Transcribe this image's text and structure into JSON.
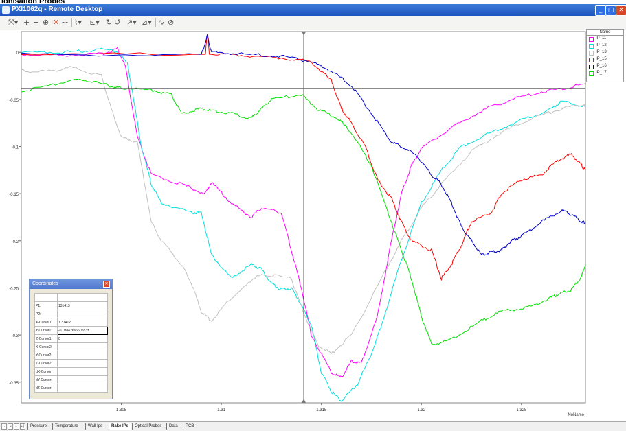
{
  "document": {
    "title": "Ionisation Probes"
  },
  "window": {
    "title": "PXI1062q - Remote Desktop",
    "controls": [
      {
        "name": "minimize",
        "glyph": "_"
      },
      {
        "name": "maximize",
        "glyph": "□"
      },
      {
        "name": "close",
        "glyph": "✕"
      }
    ]
  },
  "toolbar": {
    "icons": [
      "select-tool",
      "add-tool",
      "remove-tool",
      "zoom-tool",
      "delete-tool",
      "plot-tool",
      "chart-tool",
      "axis-tool",
      "zoom-x-tool",
      "zoom-y-tool",
      "cursor-tool",
      "measure-tool",
      "wave-tool",
      "link-tool"
    ]
  },
  "chart_data": {
    "type": "line",
    "xlim": [
      1.3,
      1.3282
    ],
    "ylim": [
      -0.372,
      0.022
    ],
    "xticks": [
      1.305,
      1.31,
      1.315,
      1.32,
      1.325
    ],
    "xtick_labels": [
      "1.305",
      "1.31",
      "1.315",
      "1.32",
      "1.325"
    ],
    "yticks": [
      0,
      -0.05,
      -0.1,
      -0.15,
      -0.2,
      -0.25,
      -0.3,
      -0.35
    ],
    "ytick_labels": [
      "0",
      "-0.05",
      "-0.1",
      "-0.15",
      "-0.2",
      "-0.25",
      "-0.3",
      "-0.35"
    ],
    "xlabel": "NoName",
    "grid": false,
    "legend_position": "top-right",
    "cursor": {
      "x": 1.31412,
      "y": -0.0384
    },
    "series": [
      {
        "name": "IP_11",
        "color": "#ff00ff",
        "points": [
          [
            1.3,
            -0.002
          ],
          [
            1.302,
            -0.003
          ],
          [
            1.304,
            -0.002
          ],
          [
            1.3048,
            0.004
          ],
          [
            1.3052,
            -0.015
          ],
          [
            1.3058,
            -0.09
          ],
          [
            1.3065,
            -0.13
          ],
          [
            1.308,
            -0.14
          ],
          [
            1.3092,
            -0.15
          ],
          [
            1.3095,
            -0.138
          ],
          [
            1.3105,
            -0.16
          ],
          [
            1.3115,
            -0.175
          ],
          [
            1.312,
            -0.165
          ],
          [
            1.313,
            -0.17
          ],
          [
            1.3135,
            -0.21
          ],
          [
            1.314,
            -0.25
          ],
          [
            1.3145,
            -0.3
          ],
          [
            1.3155,
            -0.34
          ],
          [
            1.316,
            -0.345
          ],
          [
            1.3165,
            -0.328
          ],
          [
            1.317,
            -0.33
          ],
          [
            1.3178,
            -0.28
          ],
          [
            1.3185,
            -0.2
          ],
          [
            1.319,
            -0.15
          ],
          [
            1.3195,
            -0.12
          ],
          [
            1.32,
            -0.102
          ],
          [
            1.3215,
            -0.08
          ],
          [
            1.323,
            -0.062
          ],
          [
            1.3245,
            -0.05
          ],
          [
            1.326,
            -0.042
          ],
          [
            1.3275,
            -0.037
          ],
          [
            1.3282,
            -0.033
          ]
        ]
      },
      {
        "name": "IP_12",
        "color": "#00dede",
        "points": [
          [
            1.3,
            0.0
          ],
          [
            1.302,
            0.0
          ],
          [
            1.3035,
            0.002
          ],
          [
            1.3045,
            0.004
          ],
          [
            1.3053,
            -0.01
          ],
          [
            1.306,
            -0.1
          ],
          [
            1.3065,
            -0.14
          ],
          [
            1.307,
            -0.16
          ],
          [
            1.3085,
            -0.17
          ],
          [
            1.309,
            -0.17
          ],
          [
            1.3095,
            -0.215
          ],
          [
            1.3105,
            -0.24
          ],
          [
            1.3115,
            -0.225
          ],
          [
            1.312,
            -0.23
          ],
          [
            1.3125,
            -0.245
          ],
          [
            1.313,
            -0.252
          ],
          [
            1.3135,
            -0.25
          ],
          [
            1.314,
            -0.268
          ],
          [
            1.3145,
            -0.29
          ],
          [
            1.315,
            -0.34
          ],
          [
            1.3155,
            -0.36
          ],
          [
            1.316,
            -0.37
          ],
          [
            1.3168,
            -0.352
          ],
          [
            1.3175,
            -0.32
          ],
          [
            1.318,
            -0.29
          ],
          [
            1.319,
            -0.22
          ],
          [
            1.32,
            -0.16
          ],
          [
            1.321,
            -0.125
          ],
          [
            1.322,
            -0.1
          ],
          [
            1.3235,
            -0.085
          ],
          [
            1.325,
            -0.072
          ],
          [
            1.3265,
            -0.06
          ],
          [
            1.327,
            -0.052
          ],
          [
            1.3282,
            -0.058
          ]
        ]
      },
      {
        "name": "IP_13",
        "color": "#c0c0c0",
        "points": [
          [
            1.3,
            -0.02
          ],
          [
            1.3015,
            -0.02
          ],
          [
            1.3025,
            -0.016
          ],
          [
            1.304,
            -0.025
          ],
          [
            1.3045,
            -0.06
          ],
          [
            1.305,
            -0.09
          ],
          [
            1.3058,
            -0.095
          ],
          [
            1.3065,
            -0.18
          ],
          [
            1.307,
            -0.2
          ],
          [
            1.308,
            -0.225
          ],
          [
            1.3085,
            -0.245
          ],
          [
            1.309,
            -0.275
          ],
          [
            1.3095,
            -0.285
          ],
          [
            1.3105,
            -0.26
          ],
          [
            1.312,
            -0.235
          ],
          [
            1.3135,
            -0.24
          ],
          [
            1.314,
            -0.27
          ],
          [
            1.3148,
            -0.31
          ],
          [
            1.3155,
            -0.32
          ],
          [
            1.3165,
            -0.3
          ],
          [
            1.318,
            -0.24
          ],
          [
            1.319,
            -0.2
          ],
          [
            1.32,
            -0.165
          ],
          [
            1.321,
            -0.14
          ],
          [
            1.3225,
            -0.105
          ],
          [
            1.324,
            -0.085
          ],
          [
            1.3255,
            -0.07
          ],
          [
            1.327,
            -0.06
          ],
          [
            1.3282,
            -0.055
          ]
        ]
      },
      {
        "name": "IP_15",
        "color": "#ff0000",
        "points": [
          [
            1.3,
            -0.002
          ],
          [
            1.3092,
            -0.002
          ],
          [
            1.3093,
            0.02
          ],
          [
            1.3094,
            -0.002
          ],
          [
            1.311,
            -0.003
          ],
          [
            1.313,
            -0.006
          ],
          [
            1.3145,
            -0.01
          ],
          [
            1.3155,
            -0.03
          ],
          [
            1.316,
            -0.06
          ],
          [
            1.3165,
            -0.075
          ],
          [
            1.3172,
            -0.1
          ],
          [
            1.3178,
            -0.135
          ],
          [
            1.3185,
            -0.155
          ],
          [
            1.319,
            -0.18
          ],
          [
            1.3195,
            -0.2
          ],
          [
            1.3205,
            -0.21
          ],
          [
            1.321,
            -0.24
          ],
          [
            1.3215,
            -0.225
          ],
          [
            1.322,
            -0.205
          ],
          [
            1.3225,
            -0.18
          ],
          [
            1.3235,
            -0.17
          ],
          [
            1.324,
            -0.15
          ],
          [
            1.325,
            -0.135
          ],
          [
            1.326,
            -0.13
          ],
          [
            1.3268,
            -0.115
          ],
          [
            1.3275,
            -0.108
          ],
          [
            1.328,
            -0.12
          ],
          [
            1.3282,
            -0.125
          ]
        ]
      },
      {
        "name": "IP_16",
        "color": "#0000cc",
        "points": [
          [
            1.3,
            -0.002
          ],
          [
            1.309,
            -0.003
          ],
          [
            1.3093,
            0.018
          ],
          [
            1.3095,
            0.0
          ],
          [
            1.311,
            -0.002
          ],
          [
            1.313,
            -0.004
          ],
          [
            1.3145,
            -0.01
          ],
          [
            1.3155,
            -0.02
          ],
          [
            1.3165,
            -0.035
          ],
          [
            1.3175,
            -0.065
          ],
          [
            1.3185,
            -0.095
          ],
          [
            1.319,
            -0.1
          ],
          [
            1.3198,
            -0.11
          ],
          [
            1.3205,
            -0.13
          ],
          [
            1.321,
            -0.14
          ],
          [
            1.3215,
            -0.16
          ],
          [
            1.322,
            -0.185
          ],
          [
            1.3225,
            -0.2
          ],
          [
            1.323,
            -0.215
          ],
          [
            1.3235,
            -0.212
          ],
          [
            1.324,
            -0.21
          ],
          [
            1.3245,
            -0.2
          ],
          [
            1.325,
            -0.195
          ],
          [
            1.326,
            -0.18
          ],
          [
            1.327,
            -0.168
          ],
          [
            1.3275,
            -0.172
          ],
          [
            1.328,
            -0.18
          ],
          [
            1.3282,
            -0.181
          ]
        ]
      },
      {
        "name": "IP_17",
        "color": "#00e000",
        "points": [
          [
            1.3,
            -0.042
          ],
          [
            1.302,
            -0.032
          ],
          [
            1.303,
            -0.028
          ],
          [
            1.3045,
            -0.036
          ],
          [
            1.305,
            -0.038
          ],
          [
            1.3065,
            -0.04
          ],
          [
            1.3075,
            -0.045
          ],
          [
            1.308,
            -0.065
          ],
          [
            1.309,
            -0.06
          ],
          [
            1.3095,
            -0.062
          ],
          [
            1.3105,
            -0.065
          ],
          [
            1.3115,
            -0.07
          ],
          [
            1.312,
            -0.06
          ],
          [
            1.3125,
            -0.05
          ],
          [
            1.314,
            -0.045
          ],
          [
            1.3148,
            -0.06
          ],
          [
            1.3158,
            -0.07
          ],
          [
            1.3165,
            -0.085
          ],
          [
            1.3175,
            -0.12
          ],
          [
            1.3185,
            -0.18
          ],
          [
            1.319,
            -0.21
          ],
          [
            1.3195,
            -0.24
          ],
          [
            1.32,
            -0.28
          ],
          [
            1.3205,
            -0.31
          ],
          [
            1.3215,
            -0.305
          ],
          [
            1.323,
            -0.285
          ],
          [
            1.324,
            -0.275
          ],
          [
            1.3255,
            -0.27
          ],
          [
            1.3265,
            -0.26
          ],
          [
            1.327,
            -0.255
          ],
          [
            1.3275,
            -0.252
          ],
          [
            1.328,
            -0.238
          ],
          [
            1.3282,
            -0.225
          ]
        ]
      }
    ]
  },
  "legend": {
    "header": "Name",
    "items": [
      "IP_11",
      "IP_12",
      "IP_13",
      "IP_15",
      "IP_16",
      "IP_17"
    ]
  },
  "coordinates": {
    "title": "Coordinates",
    "rows": [
      {
        "key": "P1:",
        "value": "131413"
      },
      {
        "key": "P2:",
        "value": ""
      },
      {
        "key": "X-Cursor1:",
        "value": "1.31412"
      },
      {
        "key": "Y-Cursor1:",
        "value": "-0.0384266660783z"
      },
      {
        "key": "Z-Cursor1:",
        "value": "0"
      },
      {
        "key": "X-Cursor2:",
        "value": ""
      },
      {
        "key": "Y-Cursor2:",
        "value": ""
      },
      {
        "key": "Z-Cursor2:",
        "value": ""
      },
      {
        "key": "dX-Cursor:",
        "value": ""
      },
      {
        "key": "dY-Cursor:",
        "value": ""
      },
      {
        "key": "dZ-Cursor:",
        "value": ""
      }
    ]
  },
  "tabs": [
    "Pressure",
    "Temperature",
    "Wall Ips",
    "Rake IPs",
    "Optical Probes",
    "Data",
    "PCB"
  ],
  "active_tab": "Rake IPs"
}
